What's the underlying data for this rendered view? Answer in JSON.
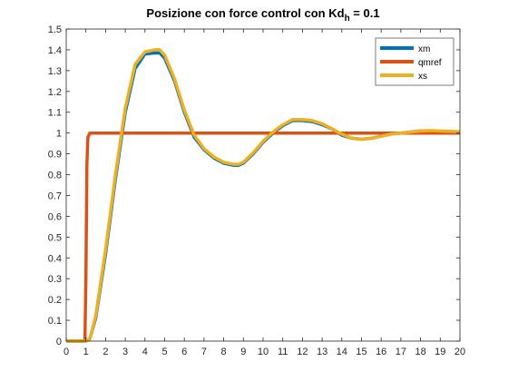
{
  "chart_data": {
    "type": "line",
    "title": "Posizione con force control con Kd",
    "title_subscript": "h",
    "title_suffix": " = 0.1",
    "xlabel": "",
    "ylabel": "",
    "xlim": [
      0,
      20
    ],
    "ylim": [
      0,
      1.5
    ],
    "xticks": [
      0,
      1,
      2,
      3,
      4,
      5,
      6,
      7,
      8,
      9,
      10,
      11,
      12,
      13,
      14,
      15,
      16,
      17,
      18,
      19,
      20
    ],
    "yticks": [
      0,
      0.1,
      0.2,
      0.3,
      0.4,
      0.5,
      0.6,
      0.7,
      0.8,
      0.9,
      1,
      1.1,
      1.2,
      1.3,
      1.4,
      1.5
    ],
    "grid": false,
    "legend_position": "top-right",
    "series": [
      {
        "name": "xm",
        "color": "#0072BD",
        "x": [
          0,
          1,
          1.2,
          1.5,
          2,
          2.5,
          3,
          3.5,
          4,
          4.5,
          4.75,
          5,
          5.5,
          6,
          6.5,
          7,
          7.5,
          8,
          8.5,
          8.75,
          9,
          9.5,
          10,
          10.5,
          11,
          11.5,
          12,
          12.5,
          13,
          13.5,
          14,
          14.5,
          15,
          15.5,
          16,
          16.5,
          17,
          17.5,
          18,
          18.5,
          19,
          19.5,
          20
        ],
        "y": [
          0,
          0,
          0.01,
          0.11,
          0.42,
          0.78,
          1.1,
          1.31,
          1.38,
          1.385,
          1.385,
          1.36,
          1.25,
          1.1,
          0.98,
          0.92,
          0.88,
          0.855,
          0.845,
          0.845,
          0.855,
          0.9,
          0.955,
          1.0,
          1.035,
          1.06,
          1.06,
          1.055,
          1.04,
          1.02,
          0.99,
          0.975,
          0.97,
          0.975,
          0.985,
          0.995,
          1.0,
          1.005,
          1.01,
          1.01,
          1.008,
          1.006,
          1.005
        ]
      },
      {
        "name": "qmref",
        "color": "#D95319",
        "x": [
          0,
          0.95,
          1.0,
          1.05,
          1.1,
          1.2,
          1.3,
          20
        ],
        "y": [
          0,
          0,
          0.3,
          0.85,
          0.98,
          1.0,
          1.0,
          1.0
        ]
      },
      {
        "name": "xs",
        "color": "#EDB120",
        "x": [
          0,
          1,
          1.2,
          1.5,
          2,
          2.5,
          3,
          3.5,
          4,
          4.5,
          4.75,
          5,
          5.5,
          6,
          6.5,
          7,
          7.5,
          8,
          8.5,
          8.75,
          9,
          9.5,
          10,
          10.5,
          11,
          11.5,
          12,
          12.5,
          13,
          13.5,
          14,
          14.5,
          15,
          15.5,
          16,
          16.5,
          17,
          17.5,
          18,
          18.5,
          19,
          19.5,
          20
        ],
        "y": [
          0,
          0,
          0.01,
          0.12,
          0.44,
          0.8,
          1.12,
          1.33,
          1.39,
          1.4,
          1.4,
          1.375,
          1.26,
          1.11,
          0.99,
          0.925,
          0.885,
          0.86,
          0.85,
          0.85,
          0.86,
          0.905,
          0.96,
          1.005,
          1.04,
          1.065,
          1.065,
          1.06,
          1.045,
          1.02,
          0.995,
          0.975,
          0.97,
          0.975,
          0.985,
          0.995,
          1.0,
          1.005,
          1.01,
          1.012,
          1.01,
          1.008,
          1.007
        ]
      }
    ]
  }
}
